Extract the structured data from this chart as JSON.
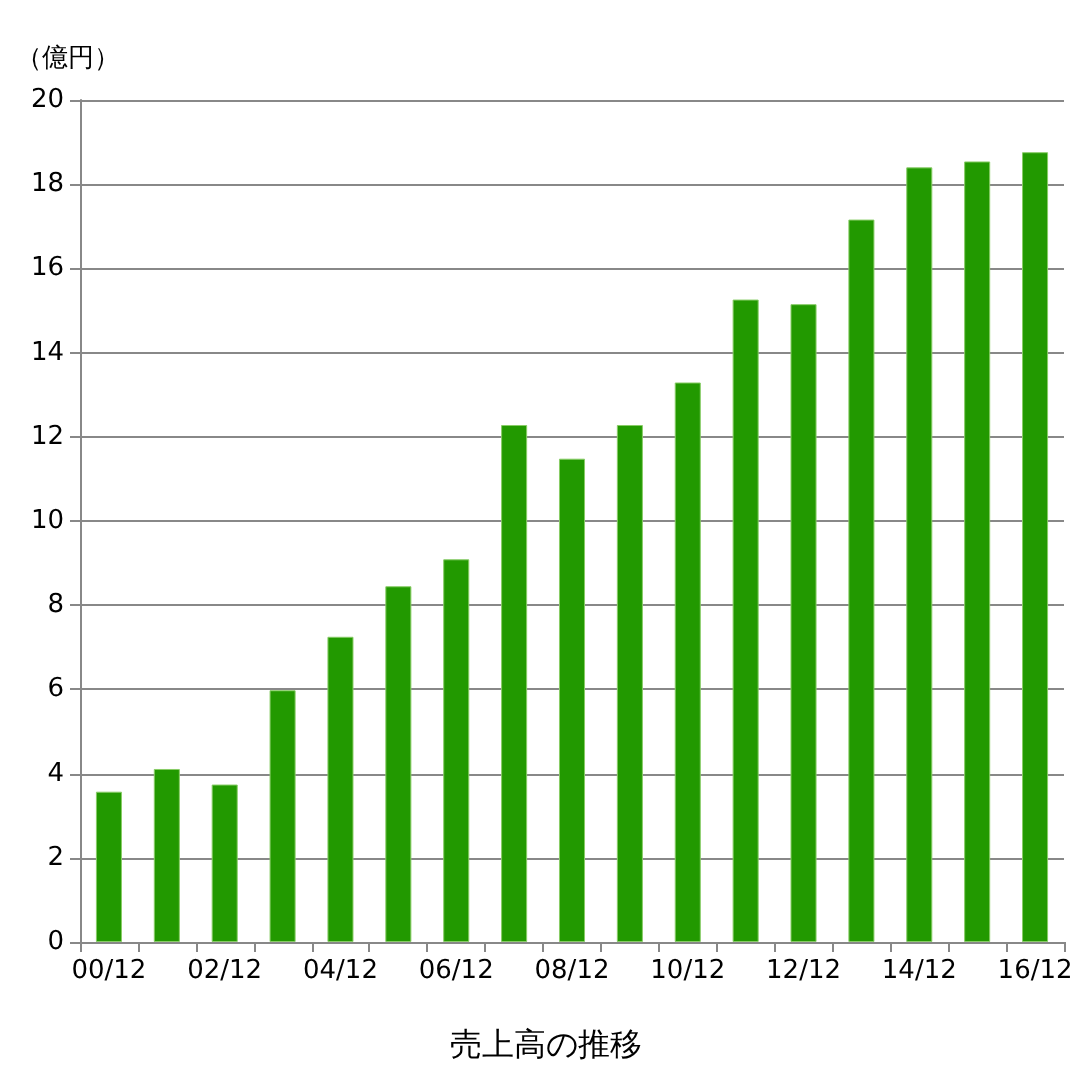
{
  "chart_data": {
    "type": "bar",
    "title": "売上高の推移",
    "ylabel": "（億円）",
    "categories": [
      "00/12",
      null,
      "02/12",
      null,
      "04/12",
      null,
      "06/12",
      null,
      "08/12",
      null,
      "10/12",
      null,
      "12/12",
      null,
      "14/12",
      null,
      "16/12"
    ],
    "values": [
      3.57,
      4.11,
      3.74,
      5.98,
      7.25,
      8.45,
      9.09,
      12.28,
      11.48,
      12.28,
      13.29,
      15.26,
      15.15,
      17.16,
      18.4,
      18.54,
      18.76
    ],
    "color": "#229900",
    "ylim": [
      0,
      20
    ],
    "yticks": [
      0,
      2,
      4,
      6,
      8,
      10,
      12,
      14,
      16,
      18,
      20
    ],
    "grid": "y"
  }
}
